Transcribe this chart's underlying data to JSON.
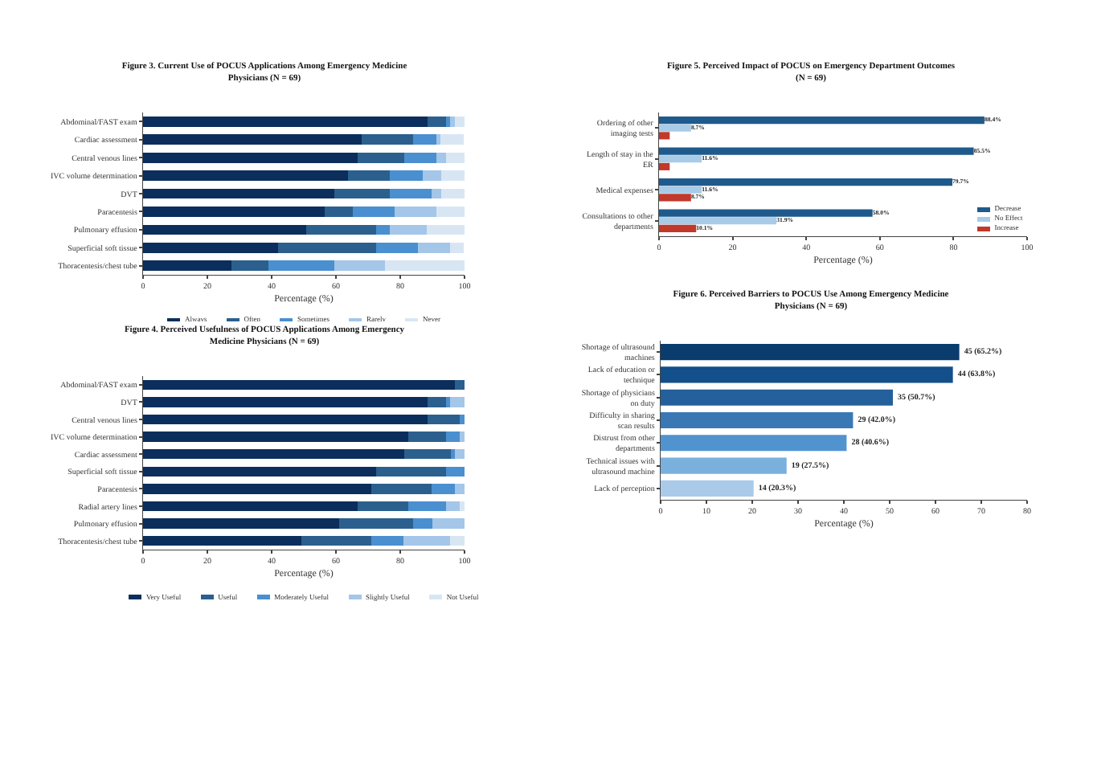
{
  "chart_data": [
    {
      "type": "bar",
      "orientation": "horizontal",
      "stacked": true,
      "title": "Figure 3. Current Use of POCUS Applications Among Emergency Medicine Physicians (N = 69)",
      "xlabel": "Percentage (%)",
      "categories": [
        "Abdominal/FAST exam",
        "Cardiac assessment",
        "Central venous lines",
        "IVC volume determination",
        "DVT",
        "Paracentesis",
        "Pulmonary effusion",
        "Superficial soft tissue",
        "Thoracentesis/chest tube"
      ],
      "xlim": [
        0,
        100
      ],
      "xticks": [
        0,
        20,
        40,
        60,
        80,
        100
      ],
      "legend": "bottom",
      "series": [
        {
          "name": "Always",
          "color": "#0b2e5c",
          "values": [
            88.4,
            68.1,
            66.7,
            63.8,
            59.4,
            56.5,
            50.7,
            42.0,
            27.5
          ]
        },
        {
          "name": "Often",
          "color": "#2b5f8e",
          "values": [
            5.8,
            15.9,
            14.5,
            13.0,
            17.4,
            8.7,
            21.7,
            30.4,
            11.6
          ]
        },
        {
          "name": "Sometimes",
          "color": "#4a8fd0",
          "values": [
            1.4,
            7.2,
            10.1,
            10.1,
            13.0,
            13.0,
            4.3,
            13.0,
            20.3
          ]
        },
        {
          "name": "Rarely",
          "color": "#a4c6e8",
          "values": [
            1.4,
            1.4,
            2.9,
            5.8,
            2.9,
            13.0,
            11.6,
            10.1,
            15.9
          ]
        },
        {
          "name": "Never",
          "color": "#d8e6f4",
          "values": [
            2.9,
            7.2,
            5.8,
            7.2,
            7.2,
            8.7,
            11.6,
            4.3,
            24.6
          ]
        }
      ]
    },
    {
      "type": "bar",
      "orientation": "horizontal",
      "stacked": true,
      "title": "Figure 4. Perceived Usefulness of POCUS Applications Among Emergency Medicine Physicians (N = 69)",
      "xlabel": "Percentage (%)",
      "categories": [
        "Abdominal/FAST exam",
        "DVT",
        "Central venous lines",
        "IVC volume determination",
        "Cardiac assessment",
        "Superficial soft tissue",
        "Paracentesis",
        "Radial artery lines",
        "Pulmonary effusion",
        "Thoracentesis/chest tube"
      ],
      "xlim": [
        0,
        100
      ],
      "xticks": [
        0,
        20,
        40,
        60,
        80,
        100
      ],
      "legend": "bottom",
      "series": [
        {
          "name": "Very Useful",
          "color": "#0b2e5c",
          "values": [
            97.1,
            88.4,
            88.4,
            82.6,
            81.2,
            72.5,
            71.0,
            66.7,
            60.9,
            49.3
          ]
        },
        {
          "name": "Useful",
          "color": "#2b5f8e",
          "values": [
            2.9,
            5.8,
            10.1,
            11.6,
            14.5,
            21.7,
            18.8,
            15.9,
            23.2,
            21.7
          ]
        },
        {
          "name": "Moderately Useful",
          "color": "#4a8fd0",
          "values": [
            0,
            1.4,
            1.4,
            4.3,
            1.4,
            5.8,
            7.2,
            11.6,
            5.8,
            10.1
          ]
        },
        {
          "name": "Slightly Useful",
          "color": "#a4c6e8",
          "values": [
            0,
            4.3,
            0,
            1.4,
            2.9,
            0,
            2.9,
            4.3,
            10.1,
            14.5
          ]
        },
        {
          "name": "Not Useful",
          "color": "#d8e6f4",
          "values": [
            0,
            0,
            0,
            0,
            0,
            0,
            0,
            1.4,
            0,
            4.3
          ]
        }
      ]
    },
    {
      "type": "bar",
      "orientation": "horizontal",
      "title": "Figure 5. Perceived Impact of POCUS on Emergency Department Outcomes (N = 69)",
      "xlabel": "Percentage (%)",
      "categories": [
        "Ordering of other imaging tests",
        "Length of stay in the ER",
        "Medical expenses",
        "Consultations to other departments"
      ],
      "xlim": [
        0,
        100
      ],
      "xticks": [
        0,
        20,
        40,
        60,
        80,
        100
      ],
      "legend": "bottom right",
      "series": [
        {
          "name": "Decrease",
          "color": "#1f5a8c",
          "values": [
            88.4,
            85.5,
            79.7,
            58.0
          ],
          "value_labels": [
            "88.4%",
            "85.5%",
            "79.7%",
            "58.0%"
          ]
        },
        {
          "name": "No Effect",
          "color": "#a8cbe8",
          "values": [
            8.7,
            11.6,
            11.6,
            31.9
          ],
          "value_labels": [
            "8.7%",
            "11.6%",
            "11.6%",
            "31.9%"
          ]
        },
        {
          "name": "Increase",
          "color": "#c0392b",
          "values": [
            2.9,
            2.9,
            8.7,
            10.1
          ],
          "value_labels": [
            null,
            null,
            "8.7%",
            "10.1%"
          ]
        }
      ]
    },
    {
      "type": "bar",
      "orientation": "horizontal",
      "title": "Figure 6. Perceived Barriers to POCUS Use Among Emergency Medicine Physicians (N = 69)",
      "xlabel": "Percentage (%)",
      "categories": [
        "Shortage of ultrasound machines",
        "Lack of education or technique",
        "Shortage of physicians on duty",
        "Difficulty in sharing scan results",
        "Distrust from other departments",
        "Technical issues with ultrasound machine",
        "Lack of perception"
      ],
      "xlim": [
        0,
        80
      ],
      "xticks": [
        0,
        10,
        20,
        30,
        40,
        50,
        60,
        70,
        80
      ],
      "values": [
        65.2,
        63.8,
        50.7,
        42.0,
        40.6,
        27.5,
        20.3
      ],
      "colors": [
        "#0b3c6e",
        "#134f8a",
        "#24609b",
        "#3a78b5",
        "#5193cf",
        "#7ab0dd",
        "#a9cbe9"
      ],
      "value_labels": [
        "45 (65.2%)",
        "44 (63.8%)",
        "35 (50.7%)",
        "29 (42.0%)",
        "28 (40.6%)",
        "19 (27.5%)",
        "14 (20.3%)"
      ]
    }
  ]
}
